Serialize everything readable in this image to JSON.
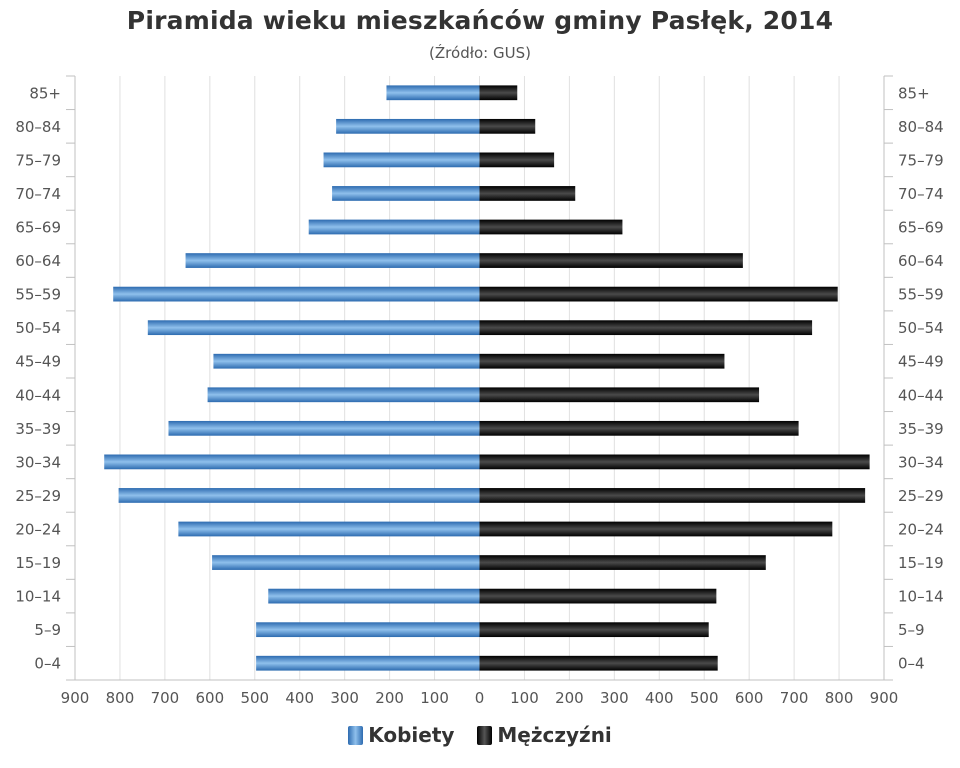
{
  "chart_data": {
    "type": "bar",
    "orientation": "horizontal",
    "layout": "population-pyramid",
    "title": "Piramida wieku mieszkańców gminy Pasłęk, 2014",
    "subtitle": "(Źródło: GUS)",
    "categories": [
      "85+",
      "80–84",
      "75–79",
      "70–74",
      "65–69",
      "60–64",
      "55–59",
      "50–54",
      "45–49",
      "40–44",
      "35–39",
      "30–34",
      "25–29",
      "20–24",
      "15–19",
      "10–14",
      "5–9",
      "0–4"
    ],
    "series": [
      {
        "name": "Kobiety",
        "side": "left",
        "color": "#3d7dc6",
        "values": [
          207,
          319,
          347,
          328,
          380,
          654,
          815,
          738,
          592,
          605,
          692,
          835,
          803,
          670,
          595,
          470,
          497,
          497
        ]
      },
      {
        "name": "Mężczyźni",
        "side": "right",
        "color": "#111111",
        "values": [
          84,
          124,
          166,
          213,
          318,
          586,
          797,
          740,
          545,
          622,
          710,
          868,
          858,
          785,
          637,
          527,
          510,
          530
        ]
      }
    ],
    "xlim": [
      -900,
      900
    ],
    "x_ticks": [
      -900,
      -800,
      -700,
      -600,
      -500,
      -400,
      -300,
      -200,
      -100,
      0,
      100,
      200,
      300,
      400,
      500,
      600,
      700,
      800,
      900
    ],
    "x_tick_labels": [
      "900",
      "800",
      "700",
      "600",
      "500",
      "400",
      "300",
      "200",
      "100",
      "0",
      "100",
      "200",
      "300",
      "400",
      "500",
      "600",
      "700",
      "800",
      "900"
    ],
    "grid": true,
    "legend_position": "bottom"
  }
}
